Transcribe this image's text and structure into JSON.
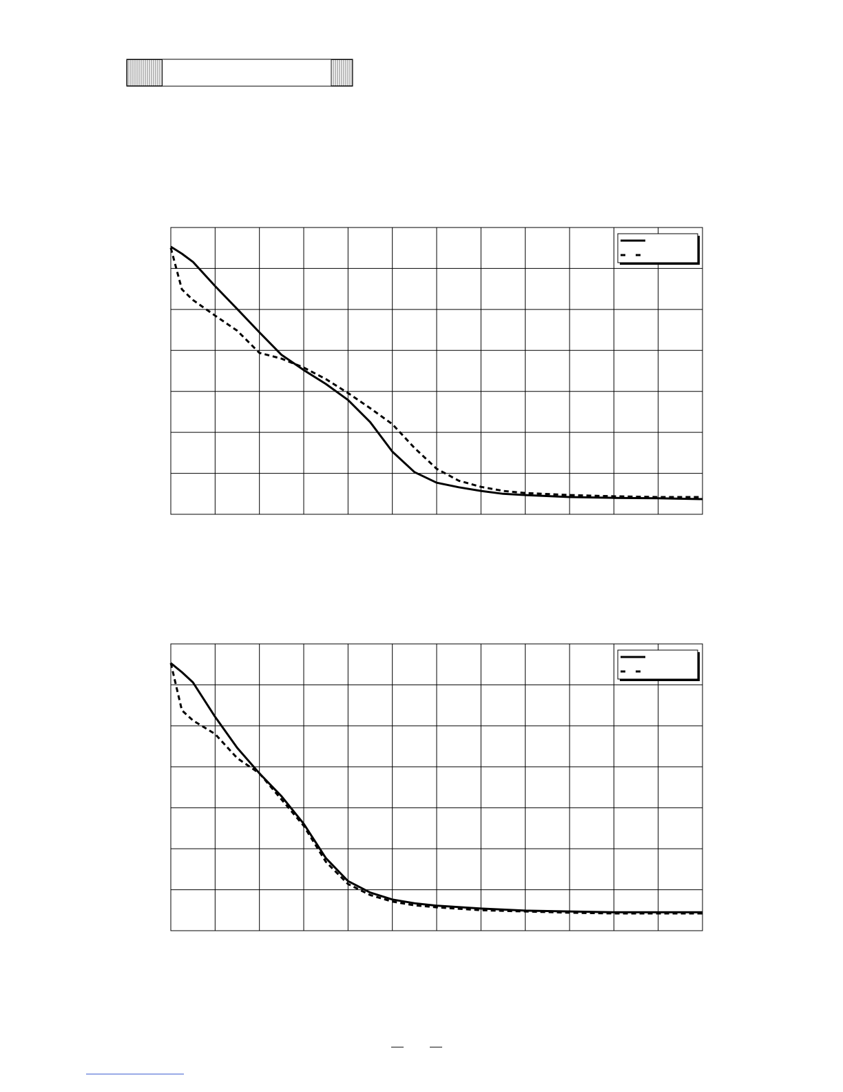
{
  "chart_data": [
    {
      "type": "line",
      "xlim": [
        0,
        12
      ],
      "ylim": [
        0,
        7
      ],
      "xticks": [
        0,
        1,
        2,
        3,
        4,
        5,
        6,
        7,
        8,
        9,
        10,
        11,
        12
      ],
      "yticks": [
        0,
        1,
        2,
        3,
        4,
        5,
        6,
        7
      ],
      "grid": true,
      "legend": "top-right",
      "x": [
        0,
        0.25,
        0.5,
        1,
        1.5,
        2,
        2.5,
        3,
        3.5,
        4,
        4.5,
        5,
        5.5,
        6,
        6.5,
        7,
        7.5,
        8,
        9,
        10,
        11,
        12
      ],
      "series": [
        {
          "color": "#000000",
          "style": "solid",
          "values": [
            6.53,
            6.36,
            6.16,
            5.57,
            5.01,
            4.44,
            3.89,
            3.52,
            3.18,
            2.79,
            2.25,
            1.53,
            1.03,
            0.77,
            0.66,
            0.57,
            0.5,
            0.47,
            0.42,
            0.4,
            0.39,
            0.37
          ]
        },
        {
          "color": "#000000",
          "style": "dashed",
          "values": [
            6.5,
            5.49,
            5.23,
            4.85,
            4.48,
            3.94,
            3.8,
            3.58,
            3.3,
            2.96,
            2.59,
            2.2,
            1.62,
            1.11,
            0.82,
            0.67,
            0.57,
            0.52,
            0.47,
            0.44,
            0.42,
            0.42
          ]
        }
      ]
    },
    {
      "type": "line",
      "xlim": [
        0,
        12
      ],
      "ylim": [
        0,
        7
      ],
      "xticks": [
        0,
        1,
        2,
        3,
        4,
        5,
        6,
        7,
        8,
        9,
        10,
        11,
        12
      ],
      "yticks": [
        0,
        1,
        2,
        3,
        4,
        5,
        6,
        7
      ],
      "grid": true,
      "legend": "top-right",
      "x": [
        0,
        0.25,
        0.5,
        1,
        1.5,
        2,
        2.5,
        3,
        3.5,
        4,
        4.5,
        5,
        5.5,
        6,
        7,
        8,
        9,
        10,
        11,
        12
      ],
      "series": [
        {
          "color": "#000000",
          "style": "solid",
          "values": [
            6.53,
            6.31,
            6.06,
            5.22,
            4.46,
            3.84,
            3.28,
            2.61,
            1.77,
            1.21,
            0.93,
            0.76,
            0.67,
            0.61,
            0.54,
            0.49,
            0.47,
            0.45,
            0.45,
            0.45
          ]
        },
        {
          "color": "#000000",
          "style": "dashed",
          "values": [
            6.53,
            5.38,
            5.13,
            4.8,
            4.21,
            3.84,
            3.2,
            2.56,
            1.68,
            1.14,
            0.87,
            0.71,
            0.62,
            0.57,
            0.5,
            0.47,
            0.44,
            0.42,
            0.42,
            0.42
          ]
        }
      ]
    }
  ]
}
